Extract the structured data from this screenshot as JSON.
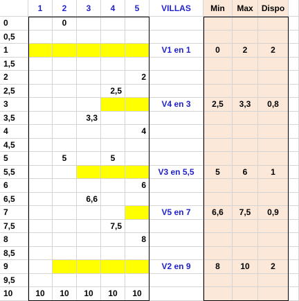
{
  "colors": {
    "highlight": "#ffff00",
    "panel_background": "#fbe8d8",
    "label_blue": "#1f1fcc",
    "grid_line": "#d4d4d4"
  },
  "headers": {
    "columns": [
      "1",
      "2",
      "3",
      "4",
      "5"
    ],
    "villas": "VILLAS",
    "min": "Min",
    "max": "Max",
    "dispo": "Dispo"
  },
  "row_labels": [
    "0",
    "0,5",
    "1",
    "1,5",
    "2",
    "2,5",
    "3",
    "3,5",
    "4",
    "4,5",
    "5",
    "5,5",
    "6",
    "6,5",
    "7",
    "7,5",
    "8",
    "8,5",
    "9",
    "9,5",
    "10"
  ],
  "cell_values": [
    {
      "row": 0,
      "col": 1,
      "text": "0",
      "align": "center"
    },
    {
      "row": 4,
      "col": 4,
      "text": "2",
      "align": "right"
    },
    {
      "row": 5,
      "col": 3,
      "text": "2,5",
      "align": "right"
    },
    {
      "row": 7,
      "col": 2,
      "text": "3,3",
      "align": "right"
    },
    {
      "row": 8,
      "col": 4,
      "text": "4",
      "align": "right"
    },
    {
      "row": 10,
      "col": 1,
      "text": "5",
      "align": "center"
    },
    {
      "row": 10,
      "col": 3,
      "text": "5",
      "align": "center"
    },
    {
      "row": 12,
      "col": 4,
      "text": "6",
      "align": "right"
    },
    {
      "row": 13,
      "col": 2,
      "text": "6,6",
      "align": "right"
    },
    {
      "row": 15,
      "col": 3,
      "text": "7,5",
      "align": "right"
    },
    {
      "row": 16,
      "col": 4,
      "text": "8",
      "align": "right"
    },
    {
      "row": 20,
      "col": 0,
      "text": "10",
      "align": "center"
    },
    {
      "row": 20,
      "col": 1,
      "text": "10",
      "align": "center"
    },
    {
      "row": 20,
      "col": 2,
      "text": "10",
      "align": "center"
    },
    {
      "row": 20,
      "col": 3,
      "text": "10",
      "align": "center"
    },
    {
      "row": 20,
      "col": 4,
      "text": "10",
      "align": "center"
    }
  ],
  "highlights": [
    {
      "row": 2,
      "from_col": 0,
      "to_col": 4
    },
    {
      "row": 6,
      "from_col": 3,
      "to_col": 4
    },
    {
      "row": 11,
      "from_col": 2,
      "to_col": 4
    },
    {
      "row": 14,
      "from_col": 4,
      "to_col": 4
    },
    {
      "row": 18,
      "from_col": 1,
      "to_col": 4
    }
  ],
  "villas": [
    {
      "row": 2,
      "label": "V1 en 1",
      "min": "0",
      "max": "2",
      "dispo": "2"
    },
    {
      "row": 6,
      "label": "V4 en 3",
      "min": "2,5",
      "max": "3,3",
      "dispo": "0,8"
    },
    {
      "row": 11,
      "label": "V3 en 5,5",
      "min": "5",
      "max": "6",
      "dispo": "1"
    },
    {
      "row": 14,
      "label": "V5 en 7",
      "min": "6,6",
      "max": "7,5",
      "dispo": "0,9"
    },
    {
      "row": 18,
      "label": "V2 en 9",
      "min": "8",
      "max": "10",
      "dispo": "2"
    }
  ]
}
